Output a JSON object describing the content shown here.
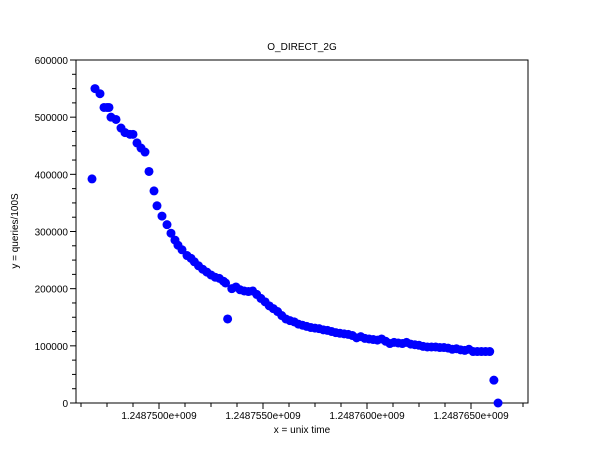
{
  "chart_data": {
    "type": "scatter",
    "title": "O_DIRECT_2G",
    "xlabel": "x = unix time",
    "ylabel": "y = queries/100S",
    "xlim": [
      1248746010,
      1248767740
    ],
    "ylim": [
      0,
      600000
    ],
    "x_major_ticks": [
      1248750000,
      1248755000,
      1248760000,
      1248765000
    ],
    "x_tick_labels": [
      "1.2487500e+009",
      "1.2487550e+009",
      "1.2487600e+009",
      "1.2487650e+009"
    ],
    "x_minor_step": 1250,
    "y_major_ticks": [
      0,
      100000,
      200000,
      300000,
      400000,
      500000,
      600000
    ],
    "y_tick_labels": [
      "0",
      "100000",
      "200000",
      "300000",
      "400000",
      "500000",
      "600000"
    ],
    "y_minor_step": 25000,
    "grid": false,
    "marker_color": "#0000ff",
    "points": [
      [
        1248746779,
        392000
      ],
      [
        1248746923,
        550000
      ],
      [
        1248747163,
        541000
      ],
      [
        1248747356,
        517000
      ],
      [
        1248747500,
        517000
      ],
      [
        1248747596,
        517000
      ],
      [
        1248747692,
        500000
      ],
      [
        1248747933,
        496000
      ],
      [
        1248748173,
        481000
      ],
      [
        1248748365,
        473000
      ],
      [
        1248748606,
        470000
      ],
      [
        1248748750,
        470000
      ],
      [
        1248748942,
        455000
      ],
      [
        1248749135,
        446000
      ],
      [
        1248749327,
        439000
      ],
      [
        1248749519,
        405000
      ],
      [
        1248749760,
        371000
      ],
      [
        1248749904,
        345000
      ],
      [
        1248750144,
        327000
      ],
      [
        1248750385,
        312000
      ],
      [
        1248750577,
        297000
      ],
      [
        1248750769,
        285000
      ],
      [
        1248750913,
        276000
      ],
      [
        1248751106,
        268000
      ],
      [
        1248751346,
        258000
      ],
      [
        1248751539,
        253000
      ],
      [
        1248751700,
        247000
      ],
      [
        1248751900,
        240000
      ],
      [
        1248752100,
        234000
      ],
      [
        1248752300,
        229000
      ],
      [
        1248752500,
        224000
      ],
      [
        1248752700,
        220000
      ],
      [
        1248752900,
        218000
      ],
      [
        1248753100,
        213000
      ],
      [
        1248753200,
        210000
      ],
      [
        1248753300,
        147000
      ],
      [
        1248753500,
        200000
      ],
      [
        1248753700,
        203000
      ],
      [
        1248753900,
        198000
      ],
      [
        1248754100,
        196000
      ],
      [
        1248754300,
        195000
      ],
      [
        1248754500,
        196000
      ],
      [
        1248754700,
        190000
      ],
      [
        1248754900,
        183000
      ],
      [
        1248755100,
        177000
      ],
      [
        1248755300,
        170000
      ],
      [
        1248755500,
        165000
      ],
      [
        1248755700,
        160000
      ],
      [
        1248755900,
        153000
      ],
      [
        1248756100,
        147000
      ],
      [
        1248756300,
        144000
      ],
      [
        1248756500,
        142000
      ],
      [
        1248756700,
        138000
      ],
      [
        1248756900,
        136000
      ],
      [
        1248757100,
        134000
      ],
      [
        1248757300,
        132000
      ],
      [
        1248757500,
        131000
      ],
      [
        1248757700,
        130000
      ],
      [
        1248757900,
        128000
      ],
      [
        1248758100,
        127000
      ],
      [
        1248758300,
        125000
      ],
      [
        1248758500,
        123000
      ],
      [
        1248758700,
        122000
      ],
      [
        1248758900,
        121000
      ],
      [
        1248759100,
        120000
      ],
      [
        1248759300,
        118000
      ],
      [
        1248759500,
        114000
      ],
      [
        1248759700,
        116000
      ],
      [
        1248759900,
        113000
      ],
      [
        1248760100,
        112000
      ],
      [
        1248760300,
        111000
      ],
      [
        1248760500,
        110000
      ],
      [
        1248760700,
        112000
      ],
      [
        1248760900,
        108000
      ],
      [
        1248761100,
        104000
      ],
      [
        1248761300,
        106000
      ],
      [
        1248761500,
        105000
      ],
      [
        1248761700,
        104000
      ],
      [
        1248761900,
        106000
      ],
      [
        1248762100,
        103000
      ],
      [
        1248762300,
        102000
      ],
      [
        1248762500,
        101000
      ],
      [
        1248762700,
        99000
      ],
      [
        1248762900,
        98000
      ],
      [
        1248763100,
        98000
      ],
      [
        1248763300,
        98000
      ],
      [
        1248763500,
        97000
      ],
      [
        1248763700,
        97000
      ],
      [
        1248763900,
        96000
      ],
      [
        1248764100,
        94000
      ],
      [
        1248764300,
        95000
      ],
      [
        1248764500,
        93000
      ],
      [
        1248764700,
        92000
      ],
      [
        1248764900,
        94000
      ],
      [
        1248765100,
        90000
      ],
      [
        1248765300,
        90000
      ],
      [
        1248765500,
        90000
      ],
      [
        1248765700,
        90000
      ],
      [
        1248765900,
        90000
      ],
      [
        1248766100,
        40000
      ],
      [
        1248766300,
        0
      ]
    ]
  }
}
